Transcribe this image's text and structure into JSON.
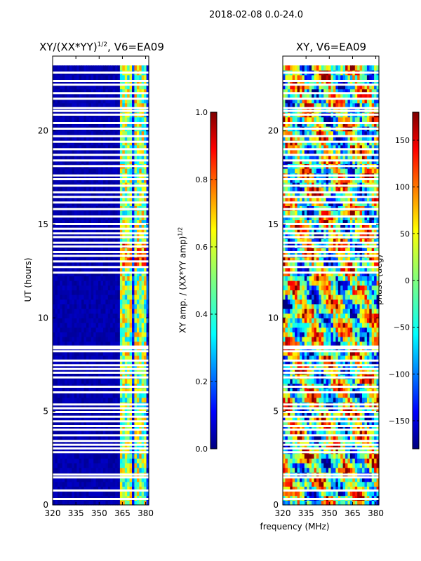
{
  "suptitle": "2018-02-08 0.0-24.0",
  "xlabel_shared": "frequency (MHz)",
  "colors": {
    "jet": [
      "#00007f",
      "#0000ff",
      "#007fff",
      "#00ffff",
      "#7fff7f",
      "#ffff00",
      "#ff7f00",
      "#ff0000",
      "#7f0000"
    ]
  },
  "chart_data": [
    {
      "type": "heatmap",
      "title": "XY/(XX*YY)^1/2, V6=EA09",
      "title_main": "XY/(XX*YY)",
      "title_sup": "1/2",
      "title_tail": ", V6=EA09",
      "xlabel": "",
      "ylabel": "UT (hours)",
      "xlim": [
        320,
        382
      ],
      "ylim": [
        0,
        24
      ],
      "xticks": [
        "320",
        "335",
        "350",
        "365",
        "380"
      ],
      "yticks": [
        "0",
        "5",
        "10",
        "15",
        "20"
      ],
      "colorbar": {
        "label": "XY amp. / (XX*YY amp)^1/2",
        "label_main": "XY amp. / (XX*YY amp)",
        "label_sup": "1/2",
        "range": [
          0.0,
          1.0
        ],
        "ticks": [
          "0.0",
          "0.2",
          "0.4",
          "0.6",
          "0.8",
          "1.0"
        ]
      },
      "flagged_rows_hours": [
        0.3,
        0.75,
        1.45,
        1.6,
        2.8,
        3.0,
        3.2,
        3.4,
        3.7,
        4.0,
        4.2,
        4.45,
        4.7,
        4.95,
        5.15,
        5.35,
        6.0,
        6.3,
        6.8,
        7.05,
        7.25,
        7.45,
        7.7,
        8.2,
        8.35,
        8.45,
        12.4,
        12.7,
        13.0,
        13.3,
        13.5,
        13.8,
        14.0,
        14.3,
        14.5,
        14.75,
        15.0,
        15.4,
        15.8,
        16.15,
        16.45,
        16.7,
        17.05,
        17.4,
        17.6,
        18.1,
        18.4,
        18.7,
        19.0,
        19.4,
        19.7,
        20.1,
        20.4,
        20.85,
        21.05,
        21.2,
        21.7,
        22.0,
        22.45,
        22.65,
        23.1
      ],
      "bright_channels_mhz": [
        [
          363,
          366
        ],
        [
          368,
          371
        ],
        [
          373,
          375
        ],
        [
          377,
          380
        ]
      ],
      "cells_description": "amplitude near 0 for 320-362 MHz; bright striped features 363-381 MHz"
    },
    {
      "type": "heatmap",
      "title": "XY, V6=EA09",
      "xlabel": "frequency (MHz)",
      "ylabel": "",
      "xlim": [
        320,
        382
      ],
      "ylim": [
        0,
        24
      ],
      "xticks": [
        "320",
        "335",
        "350",
        "365",
        "380"
      ],
      "yticks": [
        "0",
        "5",
        "10",
        "15",
        "20"
      ],
      "colorbar": {
        "label": "phase (deg)",
        "range": [
          -180,
          180
        ],
        "ticks": [
          "−150",
          "−100",
          "−50",
          "0",
          "50",
          "100",
          "150"
        ]
      },
      "flagged_rows_hours": [
        0.3,
        0.75,
        1.45,
        1.6,
        2.8,
        3.0,
        3.2,
        3.4,
        3.7,
        4.0,
        4.2,
        4.45,
        4.7,
        4.95,
        5.15,
        5.35,
        6.0,
        6.3,
        6.8,
        7.05,
        7.25,
        7.45,
        7.7,
        8.2,
        8.35,
        8.45,
        12.4,
        12.7,
        13.0,
        13.3,
        13.5,
        13.8,
        14.0,
        14.3,
        14.5,
        14.75,
        15.0,
        15.4,
        15.8,
        16.15,
        16.45,
        16.7,
        17.05,
        17.4,
        17.6,
        18.1,
        18.4,
        18.7,
        19.0,
        19.4,
        19.7,
        20.1,
        20.4,
        20.85,
        21.05,
        21.2,
        21.7,
        22.0,
        22.45,
        22.65,
        23.1
      ],
      "cells_description": "phase noise across full band, values spanning -180 to 180 deg"
    }
  ]
}
